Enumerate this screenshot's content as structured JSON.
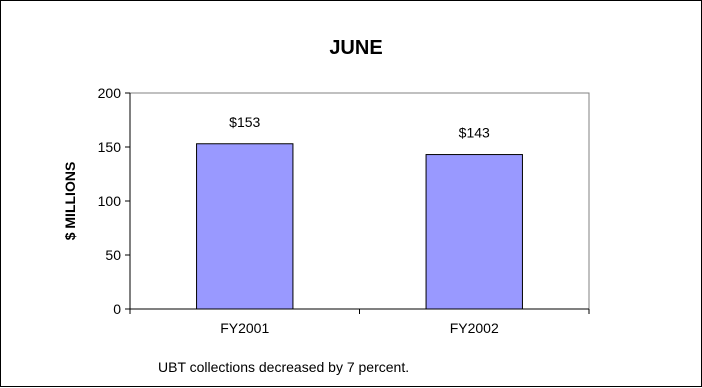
{
  "chart_data": {
    "type": "bar",
    "title": "JUNE",
    "ylabel": "$ MILLIONS",
    "xlabel": "",
    "categories": [
      "FY2001",
      "FY2002"
    ],
    "values": [
      153,
      143
    ],
    "data_labels": [
      "$153",
      "$143"
    ],
    "ylim": [
      0,
      200
    ],
    "yticks": [
      0,
      50,
      100,
      150,
      200
    ],
    "ytick_labels": [
      "0",
      "50",
      "100",
      "150",
      "200"
    ],
    "grid": false,
    "legend": "none",
    "bar_color": "#9999ff",
    "plot_background": "#ffffff",
    "note": "UBT collections decreased by 7 percent."
  }
}
